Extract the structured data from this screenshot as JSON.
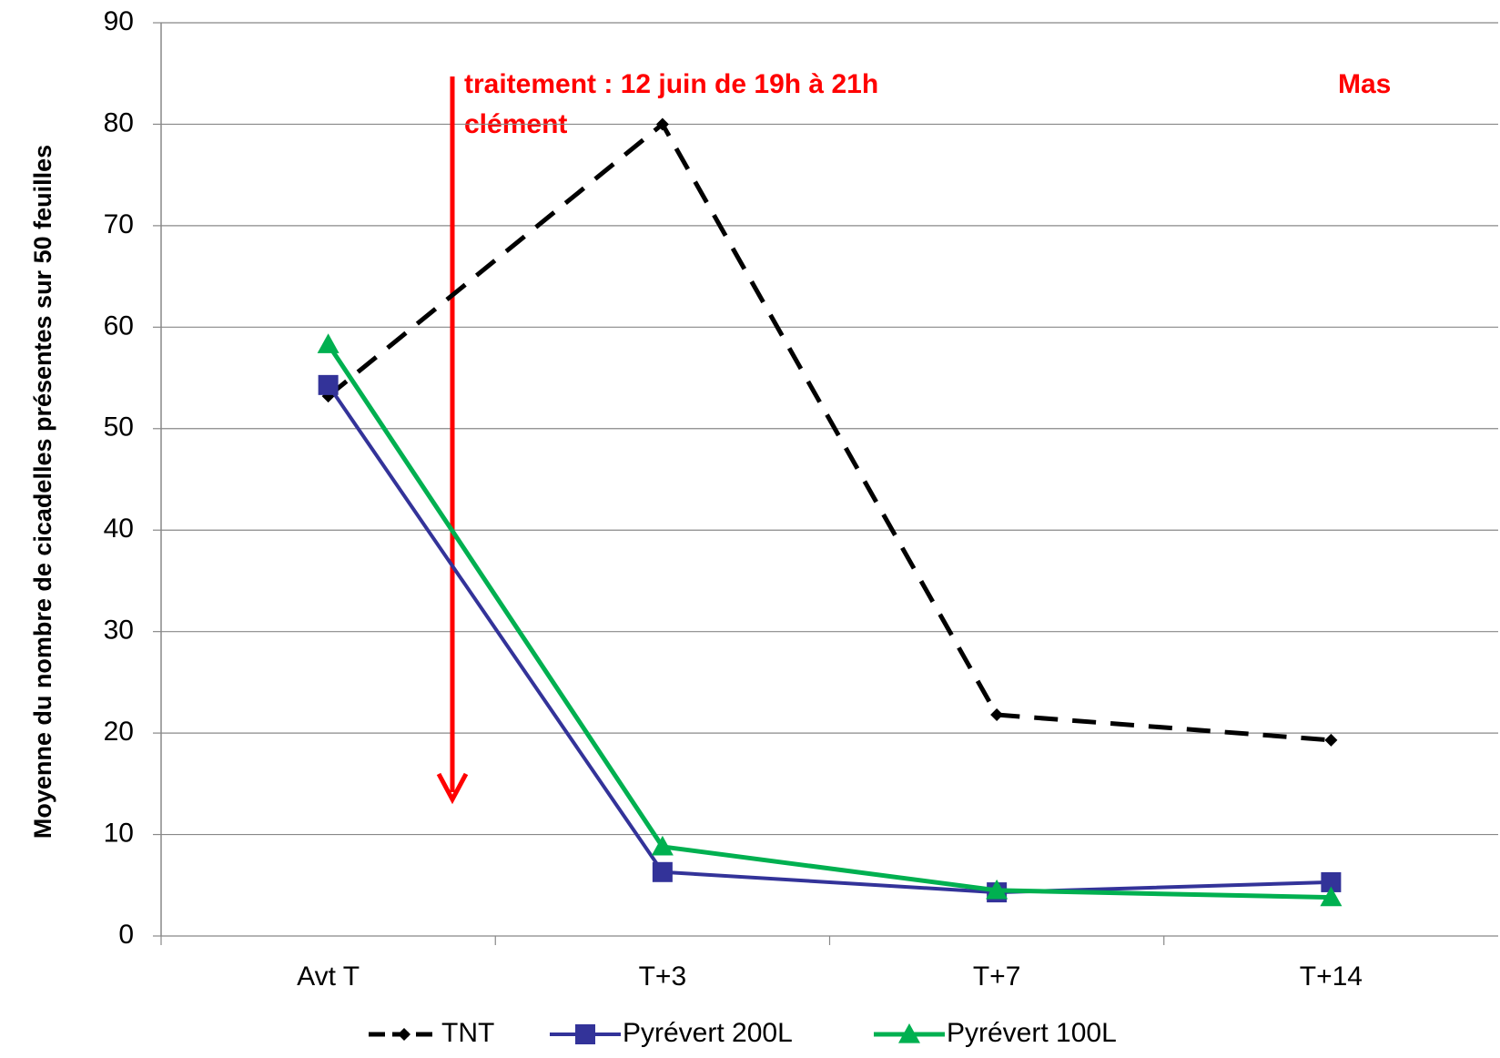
{
  "chart_data": {
    "type": "line",
    "y_label": "Moyenne du nombre de cicadelles présentes sur 50 feuilles",
    "annotations": [
      "traitement : 12 juin de 19h à 21h",
      "clément",
      "Mas"
    ],
    "categories": [
      "Avt T",
      "T+3",
      "T+7",
      "T+14"
    ],
    "series": [
      {
        "name": "TNT",
        "color": "#000000",
        "values": [
          53.2,
          80,
          21.8,
          19.3
        ]
      },
      {
        "name": "Pyrévert 200L",
        "color": "#333399",
        "values": [
          54.3,
          6.3,
          4.3,
          5.3
        ]
      },
      {
        "name": "Pyrévert 100L",
        "color": "#00b050",
        "values": [
          58.3,
          8.8,
          4.5,
          3.8
        ]
      }
    ],
    "ylim": [
      0,
      90
    ],
    "yticks": [
      0,
      10,
      20,
      30,
      40,
      50,
      60,
      70,
      80,
      90
    ],
    "grid": true,
    "legend": "bottom"
  }
}
